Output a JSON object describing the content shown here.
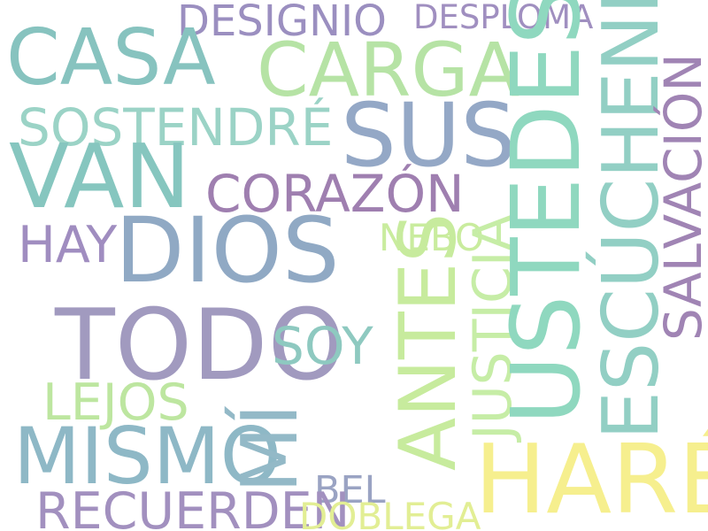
{
  "words": [
    {
      "id": "designio",
      "text": "DESIGNIO",
      "color": "#9b8fc0"
    },
    {
      "id": "desploma",
      "text": "DESPLOMA",
      "color": "#a08fc0"
    },
    {
      "id": "casa",
      "text": "CASA",
      "color": "#87c3bf"
    },
    {
      "id": "carga",
      "text": "CARGA",
      "color": "#b6e3a5"
    },
    {
      "id": "sus",
      "text": "SUS",
      "color": "#94a8c6"
    },
    {
      "id": "sostendre",
      "text": "SOSTENDRÉ",
      "color": "#9bd3c6"
    },
    {
      "id": "van",
      "text": "VAN",
      "color": "#86c6bf"
    },
    {
      "id": "corazon",
      "text": "CORAZÓN",
      "color": "#9f7fb0"
    },
    {
      "id": "dios",
      "text": "DIOS",
      "color": "#90a9c4"
    },
    {
      "id": "hay",
      "text": "HAY",
      "color": "#a08dc0"
    },
    {
      "id": "nebo",
      "text": "NEBO",
      "color": "#c9ec9e"
    },
    {
      "id": "todo",
      "text": "TODO",
      "color": "#a19abf"
    },
    {
      "id": "soy",
      "text": "SOY",
      "color": "#8ec9c0"
    },
    {
      "id": "lejos",
      "text": "LEJOS",
      "color": "#bde6a0"
    },
    {
      "id": "mismo",
      "text": "MISMO",
      "color": "#8eb8c6"
    },
    {
      "id": "mi",
      "text": "MÍ",
      "color": "#93b9c7"
    },
    {
      "id": "bel",
      "text": "BEL",
      "color": "#9aa3c3"
    },
    {
      "id": "recuerden",
      "text": "RECUERDEN",
      "color": "#a290bf"
    },
    {
      "id": "doblega",
      "text": "DOBLEGA",
      "color": "#e2ee94"
    },
    {
      "id": "hare",
      "text": "HARÉ",
      "color": "#f6ef8e"
    },
    {
      "id": "antes",
      "text": "ANTES",
      "color": "#c7eb9d"
    },
    {
      "id": "justicia",
      "text": "JUSTICIA",
      "color": "#c6eda6"
    },
    {
      "id": "ustedes",
      "text": "USTEDES",
      "color": "#8fd8bf"
    },
    {
      "id": "escuchenme",
      "text": "ESCÚCHENME",
      "color": "#92cfc4"
    },
    {
      "id": "salvacion",
      "text": "SALVACIÓN",
      "color": "#a084b4"
    }
  ]
}
